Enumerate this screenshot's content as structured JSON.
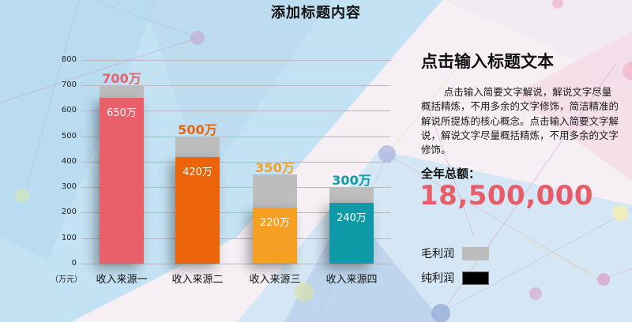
{
  "title": "添加标题内容",
  "chart_data": {
    "type": "bar",
    "title": "添加标题内容",
    "xlabel": "",
    "ylabel": "（万元）",
    "ylim": [
      0,
      800
    ],
    "yticks": [
      0,
      100,
      200,
      300,
      400,
      500,
      600,
      700,
      800
    ],
    "grid": true,
    "legend_position": "right",
    "categories": [
      "收入来源一",
      "收入来源二",
      "收入来源三",
      "收入来源四"
    ],
    "series": [
      {
        "name": "毛利润",
        "values": [
          700,
          500,
          350,
          300
        ],
        "color": "#bdbdbd"
      },
      {
        "name": "纯利润",
        "values": [
          650,
          420,
          220,
          240
        ]
      }
    ],
    "bar_colors": [
      "#e9606a",
      "#eb6409",
      "#f5a023",
      "#0f9aa8"
    ],
    "gross_labels": [
      "700万",
      "500万",
      "350万",
      "300万"
    ],
    "net_labels": [
      "650万",
      "420万",
      "220万",
      "240万"
    ]
  },
  "axis": {
    "unit": "（万元）",
    "ticks": [
      "800",
      "700",
      "600",
      "500",
      "400",
      "300",
      "200",
      "100",
      "0"
    ]
  },
  "bars": [
    {
      "category": "收入来源一",
      "gross": 700,
      "net": 650,
      "gross_label": "700万",
      "net_label": "650万",
      "color": "#e9606a",
      "label_color": "#e9606a"
    },
    {
      "category": "收入来源二",
      "gross": 500,
      "net": 420,
      "gross_label": "500万",
      "net_label": "420万",
      "color": "#eb6409",
      "label_color": "#eb6409"
    },
    {
      "category": "收入来源三",
      "gross": 350,
      "net": 220,
      "gross_label": "350万",
      "net_label": "220万",
      "color": "#f5a023",
      "label_color": "#f5a023"
    },
    {
      "category": "收入来源四",
      "gross": 300,
      "net": 240,
      "gross_label": "300万",
      "net_label": "240万",
      "color": "#0f9aa8",
      "label_color": "#0f9aa8"
    }
  ],
  "panel": {
    "heading": "点击输入标题文本",
    "paragraph": "点击输入简要文字解说，解说文字尽量概括精炼，不用多余的文字修饰，简洁精准的  解说所提炼的核心概念。点击输入简要文字解说，解说文字尽量概括精炼，不用多余的文字修饰。",
    "total_label": "全年总额：",
    "total_value": "18,500,000",
    "total_color": "#e85c6a"
  },
  "legend": [
    {
      "label": "毛利润",
      "color": "#bdbdbd"
    },
    {
      "label": "纯利润",
      "color": "#000000"
    }
  ]
}
